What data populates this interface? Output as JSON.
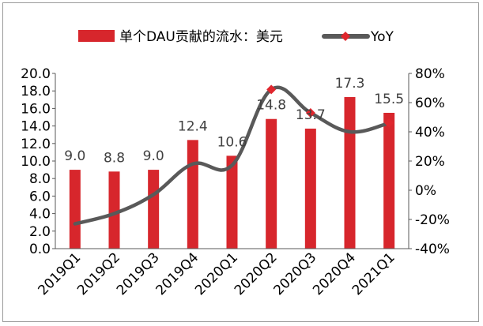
{
  "chart_data": {
    "type": "bar",
    "categories": [
      "2019Q1",
      "2019Q2",
      "2019Q3",
      "2019Q4",
      "2020Q1",
      "2020Q2",
      "2020Q3",
      "2020Q4",
      "2021Q1"
    ],
    "series": [
      {
        "name": "单个DAU贡献的流水：美元",
        "type": "bar",
        "axis": "left",
        "color": "#d7262c",
        "values": [
          9.0,
          8.8,
          9.0,
          12.4,
          10.6,
          14.8,
          13.7,
          17.3,
          15.5
        ],
        "labels": [
          "9.0",
          "8.8",
          "9.0",
          "12.4",
          "10.6",
          "14.8",
          "13.7",
          "17.3",
          "15.5"
        ]
      },
      {
        "name": "YoY",
        "type": "line",
        "axis": "right",
        "color": "#595959",
        "marker_color": "#e0262d",
        "smooth": true,
        "values": [
          -0.23,
          -0.16,
          -0.03,
          0.18,
          0.17,
          0.69,
          0.53,
          0.4,
          0.46
        ],
        "markers": [
          false,
          false,
          false,
          false,
          false,
          true,
          true,
          false,
          true
        ]
      }
    ],
    "y_left": {
      "lim": [
        0,
        20
      ],
      "ticks": [
        "0.0",
        "2.0",
        "4.0",
        "6.0",
        "8.0",
        "10.0",
        "12.0",
        "14.0",
        "16.0",
        "18.0",
        "20.0"
      ]
    },
    "y_right": {
      "lim": [
        -0.4,
        0.8
      ],
      "ticks": [
        "-40%",
        "-20%",
        "0%",
        "20%",
        "40%",
        "60%",
        "80%"
      ]
    },
    "legend_position": "top",
    "grid": false
  }
}
